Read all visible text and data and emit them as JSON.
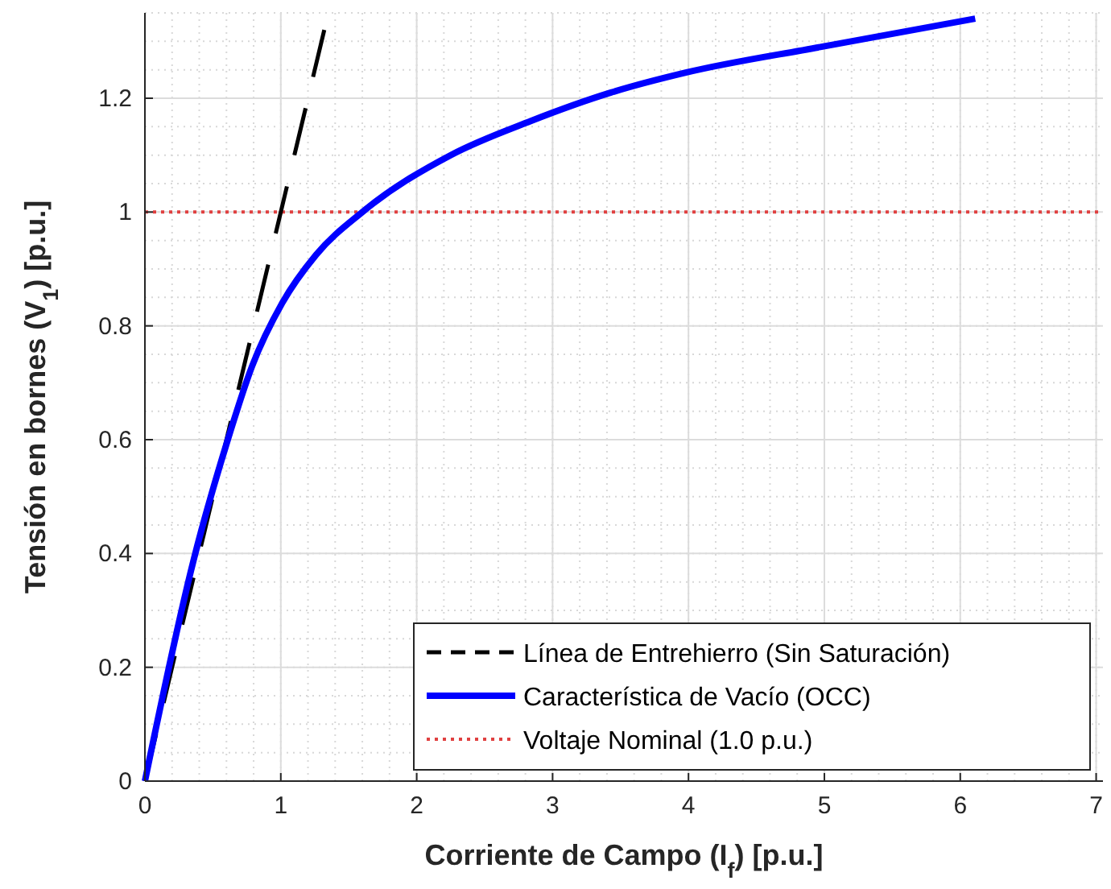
{
  "chart_data": {
    "type": "line",
    "xlabel": "Corriente de Campo (I$_{f}$) [p.u.]",
    "ylabel": "Tensión en bornes (V$_{1}$) [p.u.]",
    "xlim": [
      0,
      7.05
    ],
    "ylim": [
      0,
      1.35
    ],
    "xticks": [
      0,
      1,
      2,
      3,
      4,
      5,
      6,
      7
    ],
    "yticks": [
      0,
      0.2,
      0.4,
      0.6,
      0.8,
      1,
      1.2
    ],
    "grid": true,
    "legend": "bottom right",
    "series": [
      {
        "name": "Línea de Entrehierro (Sin Saturación)",
        "color": "#000000",
        "line_style": "dashed",
        "x": [
          0,
          1.32
        ],
        "values": [
          0,
          1.32
        ]
      },
      {
        "name": "Característica de Vacío (OCC)",
        "color": "#0000ff",
        "line_style": "solid",
        "x": [
          0,
          0.36,
          0.61,
          0.79,
          1.01,
          1.26,
          1.6,
          2.25,
          2.84,
          3.43,
          3.98,
          4.97,
          6.11
        ],
        "values": [
          0,
          0.39,
          0.6,
          0.73,
          0.84,
          0.925,
          1,
          1.1,
          1.16,
          1.21,
          1.245,
          1.29,
          1.34
        ]
      }
    ],
    "ref_lines": [
      {
        "axis": "y",
        "value": 1,
        "label": "Voltaje Nominal (1.0 p.u.)",
        "color": "#e04040",
        "line_style": "dotted"
      }
    ]
  }
}
